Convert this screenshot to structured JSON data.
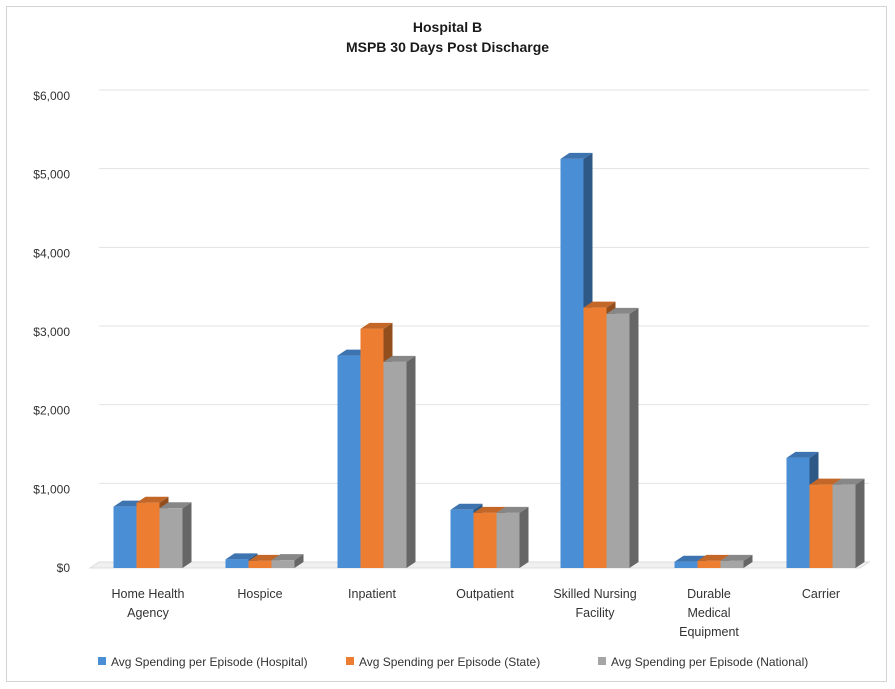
{
  "chart_data": {
    "type": "bar",
    "title": "Hospital B",
    "subtitle": "MSPB 30 Days Post Discharge",
    "xlabel": "",
    "ylabel": "",
    "ylim": [
      0,
      6000
    ],
    "yticks": [
      "$0",
      "$1,000",
      "$2,000",
      "$3,000",
      "$4,000",
      "$5,000",
      "$6,000"
    ],
    "ytick_values": [
      0,
      1000,
      2000,
      3000,
      4000,
      5000,
      6000
    ],
    "grid": true,
    "legend_position": "bottom",
    "categories": [
      [
        "Home Health",
        "Agency"
      ],
      [
        "Hospice"
      ],
      [
        "Inpatient"
      ],
      [
        "Outpatient"
      ],
      [
        "Skilled Nursing",
        "Facility"
      ],
      [
        "Durable",
        "Medical",
        "Equipment"
      ],
      [
        "Carrier"
      ]
    ],
    "series": [
      {
        "name": "Avg Spending per Episode (Hospital)",
        "color": "#4a8ed6",
        "values": [
          780,
          110,
          2700,
          740,
          5200,
          80,
          1400
        ]
      },
      {
        "name": "Avg Spending per Episode (State)",
        "color": "#ed7d31",
        "values": [
          830,
          90,
          3040,
          700,
          3310,
          90,
          1060
        ]
      },
      {
        "name": "Avg Spending per Episode (National)",
        "color": "#a5a5a5",
        "values": [
          760,
          100,
          2620,
          700,
          3230,
          90,
          1060
        ]
      }
    ]
  }
}
